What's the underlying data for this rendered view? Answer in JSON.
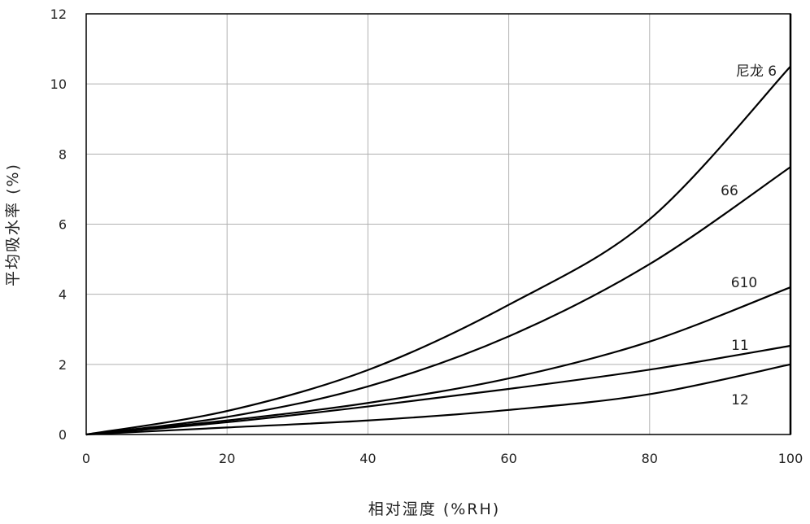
{
  "chart_data": {
    "type": "line",
    "title": "",
    "xlabel": "相对湿度 (%RH)",
    "ylabel": "平均吸水率 (%)",
    "xlim": [
      0,
      100
    ],
    "ylim": [
      0,
      12
    ],
    "xticks": [
      0,
      20,
      40,
      60,
      80,
      100
    ],
    "yticks": [
      0,
      2,
      4,
      6,
      8,
      10,
      12
    ],
    "grid": true,
    "legend": "none (curves labelled directly near right end)",
    "x": [
      0,
      20,
      40,
      60,
      80,
      100
    ],
    "series": [
      {
        "name": "尼龙 6",
        "values": [
          0,
          0.67,
          1.84,
          3.7,
          6.14,
          10.5
        ]
      },
      {
        "name": "66",
        "values": [
          0,
          0.5,
          1.37,
          2.8,
          4.86,
          7.63
        ]
      },
      {
        "name": "610",
        "values": [
          0,
          0.4,
          0.9,
          1.6,
          2.65,
          4.2
        ]
      },
      {
        "name": "11",
        "values": [
          0,
          0.35,
          0.8,
          1.3,
          1.85,
          2.53
        ]
      },
      {
        "name": "12",
        "values": [
          0,
          0.2,
          0.4,
          0.7,
          1.15,
          2.0
        ]
      }
    ],
    "colors": {
      "line": "#000000",
      "grid": "#b0b0b0",
      "axis": "#000000"
    }
  }
}
